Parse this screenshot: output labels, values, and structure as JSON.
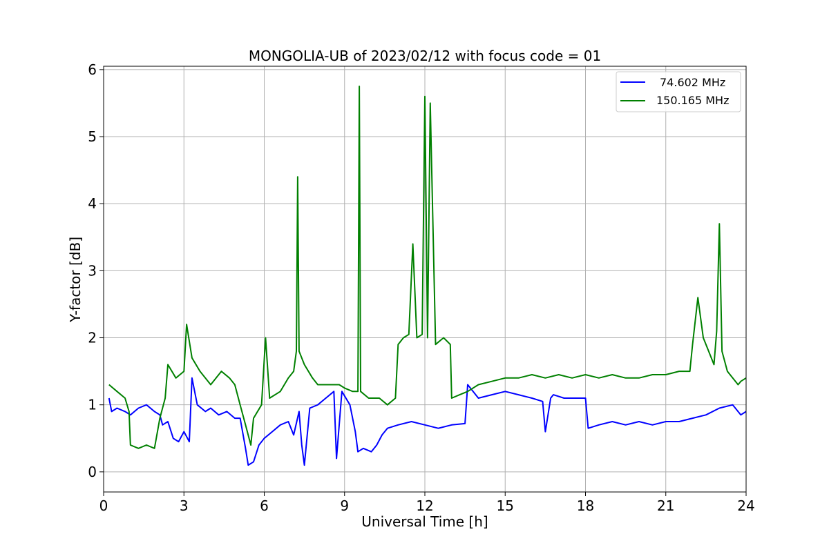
{
  "chart_data": {
    "type": "line",
    "title": "MONGOLIA-UB of 2023/02/12 with focus code = 01",
    "xlabel": "Universal Time [h]",
    "ylabel": "Y-factor [dB]",
    "xlim": [
      0,
      24
    ],
    "ylim": [
      -0.3,
      6.05
    ],
    "xticks": [
      "0",
      "3",
      "6",
      "9",
      "12",
      "15",
      "18",
      "21",
      "24"
    ],
    "yticks": [
      "0",
      "1",
      "2",
      "3",
      "4",
      "5",
      "6"
    ],
    "grid": true,
    "legend_position": "top-right",
    "series": [
      {
        "name": "74.602 MHz",
        "color": "#0000ff",
        "x": [
          0.2,
          0.3,
          0.5,
          0.8,
          1.0,
          1.3,
          1.6,
          1.9,
          2.1,
          2.2,
          2.4,
          2.6,
          2.8,
          3.0,
          3.2,
          3.3,
          3.5,
          3.8,
          4.0,
          4.3,
          4.6,
          4.9,
          5.1,
          5.3,
          5.4,
          5.6,
          5.8,
          6.0,
          6.3,
          6.6,
          6.9,
          7.1,
          7.3,
          7.4,
          7.5,
          7.7,
          8.0,
          8.3,
          8.6,
          8.7,
          8.9,
          9.2,
          9.4,
          9.5,
          9.7,
          10.0,
          10.2,
          10.4,
          10.6,
          11.0,
          11.5,
          12.0,
          12.5,
          13.0,
          13.5,
          13.6,
          14.0,
          14.5,
          15.0,
          15.5,
          16.0,
          16.4,
          16.5,
          16.7,
          16.8,
          17.2,
          17.6,
          18.0,
          18.1,
          18.5,
          19.0,
          19.5,
          20.0,
          20.5,
          21.0,
          21.5,
          22.0,
          22.5,
          23.0,
          23.5,
          23.8,
          24.0
        ],
        "y": [
          1.1,
          0.9,
          0.95,
          0.9,
          0.85,
          0.95,
          1.0,
          0.9,
          0.85,
          0.7,
          0.75,
          0.5,
          0.45,
          0.6,
          0.45,
          1.4,
          1.0,
          0.9,
          0.95,
          0.85,
          0.9,
          0.8,
          0.8,
          0.35,
          0.1,
          0.15,
          0.4,
          0.5,
          0.6,
          0.7,
          0.75,
          0.55,
          0.9,
          0.4,
          0.1,
          0.95,
          1.0,
          1.1,
          1.2,
          0.2,
          1.2,
          1.0,
          0.6,
          0.3,
          0.35,
          0.3,
          0.4,
          0.55,
          0.65,
          0.7,
          0.75,
          0.7,
          0.65,
          0.7,
          0.72,
          1.3,
          1.1,
          1.15,
          1.2,
          1.15,
          1.1,
          1.05,
          0.6,
          1.1,
          1.15,
          1.1,
          1.1,
          1.1,
          0.65,
          0.7,
          0.75,
          0.7,
          0.75,
          0.7,
          0.75,
          0.75,
          0.8,
          0.85,
          0.95,
          1.0,
          0.85,
          0.9
        ]
      },
      {
        "name": "150.165 MHz",
        "color": "#008000",
        "x": [
          0.2,
          0.5,
          0.8,
          0.95,
          1.0,
          1.3,
          1.6,
          1.9,
          2.1,
          2.3,
          2.4,
          2.7,
          3.0,
          3.1,
          3.3,
          3.6,
          4.0,
          4.4,
          4.7,
          4.9,
          5.1,
          5.3,
          5.5,
          5.6,
          5.9,
          6.05,
          6.2,
          6.6,
          6.9,
          7.1,
          7.2,
          7.25,
          7.3,
          7.5,
          7.8,
          8.0,
          8.4,
          8.8,
          9.0,
          9.3,
          9.5,
          9.55,
          9.6,
          9.9,
          10.3,
          10.6,
          10.9,
          11.0,
          11.2,
          11.4,
          11.55,
          11.7,
          11.9,
          12.0,
          12.1,
          12.2,
          12.4,
          12.7,
          12.95,
          13.0,
          13.3,
          13.6,
          14.0,
          14.5,
          15.0,
          15.5,
          16.0,
          16.5,
          17.0,
          17.5,
          18.0,
          18.5,
          19.0,
          19.5,
          20.0,
          20.5,
          21.0,
          21.5,
          21.9,
          22.0,
          22.2,
          22.4,
          22.6,
          22.8,
          22.9,
          23.0,
          23.1,
          23.3,
          23.5,
          23.7,
          23.8,
          24.0
        ],
        "y": [
          1.3,
          1.2,
          1.1,
          0.9,
          0.4,
          0.35,
          0.4,
          0.35,
          0.8,
          1.1,
          1.6,
          1.4,
          1.5,
          2.2,
          1.7,
          1.5,
          1.3,
          1.5,
          1.4,
          1.3,
          1.0,
          0.7,
          0.4,
          0.8,
          1.0,
          2.0,
          1.1,
          1.2,
          1.4,
          1.5,
          1.8,
          4.4,
          1.8,
          1.6,
          1.4,
          1.3,
          1.3,
          1.3,
          1.25,
          1.2,
          1.2,
          5.75,
          1.2,
          1.1,
          1.1,
          1.0,
          1.1,
          1.9,
          2.0,
          2.05,
          3.4,
          2.0,
          2.05,
          5.6,
          2.0,
          5.5,
          1.9,
          2.0,
          1.9,
          1.1,
          1.15,
          1.2,
          1.3,
          1.35,
          1.4,
          1.4,
          1.45,
          1.4,
          1.45,
          1.4,
          1.45,
          1.4,
          1.45,
          1.4,
          1.4,
          1.45,
          1.45,
          1.5,
          1.5,
          1.9,
          2.6,
          2.0,
          1.8,
          1.6,
          2.1,
          3.7,
          1.8,
          1.5,
          1.4,
          1.3,
          1.35,
          1.4
        ]
      }
    ]
  }
}
